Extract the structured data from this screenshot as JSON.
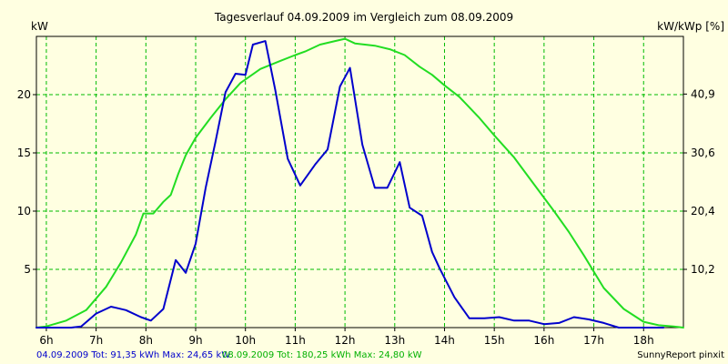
{
  "chart_data": {
    "type": "line",
    "title": "Tagesverlauf 04.09.2009 im Vergleich zum 08.09.2009",
    "ylabel_left": "kW",
    "ylabel_right": "kW/kWp [%]",
    "xlim": [
      5.8,
      18.8
    ],
    "ylim": [
      0,
      25
    ],
    "ylim_right": [
      0,
      51
    ],
    "x_ticks": [
      {
        "value": 6,
        "label": "6h"
      },
      {
        "value": 7,
        "label": "7h"
      },
      {
        "value": 8,
        "label": "8h"
      },
      {
        "value": 9,
        "label": "9h"
      },
      {
        "value": 10,
        "label": "10h"
      },
      {
        "value": 11,
        "label": "11h"
      },
      {
        "value": 12,
        "label": "12h"
      },
      {
        "value": 13,
        "label": "13h"
      },
      {
        "value": 14,
        "label": "14h"
      },
      {
        "value": 15,
        "label": "15h"
      },
      {
        "value": 16,
        "label": "16h"
      },
      {
        "value": 17,
        "label": "17h"
      },
      {
        "value": 18,
        "label": "18h"
      }
    ],
    "y_ticks_left": [
      {
        "value": 5,
        "label": "5"
      },
      {
        "value": 10,
        "label": "10"
      },
      {
        "value": 15,
        "label": "15"
      },
      {
        "value": 20,
        "label": "20"
      }
    ],
    "y_ticks_right": [
      {
        "value": 10.2,
        "label": "10,2"
      },
      {
        "value": 20.4,
        "label": "20,4"
      },
      {
        "value": 30.6,
        "label": "30,6"
      },
      {
        "value": 40.9,
        "label": "40,9"
      }
    ],
    "series": [
      {
        "name": "04.09.2009",
        "color": "#0000cc",
        "x": [
          5.8,
          6.5,
          6.7,
          7.0,
          7.3,
          7.6,
          7.9,
          8.1,
          8.35,
          8.6,
          8.8,
          9.0,
          9.2,
          9.4,
          9.6,
          9.8,
          10.0,
          10.15,
          10.4,
          10.6,
          10.85,
          11.1,
          11.4,
          11.65,
          11.9,
          12.1,
          12.35,
          12.6,
          12.85,
          13.1,
          13.3,
          13.55,
          13.75,
          13.9,
          14.2,
          14.5,
          14.8,
          15.1,
          15.4,
          15.7,
          16.0,
          16.3,
          16.6,
          16.9,
          17.2,
          17.5,
          17.8,
          18.1,
          18.4
        ],
        "y": [
          0,
          0,
          0.1,
          1.2,
          1.8,
          1.5,
          0.9,
          0.6,
          1.6,
          5.8,
          4.7,
          7.2,
          12,
          16,
          20.2,
          21.8,
          21.7,
          24.3,
          24.6,
          20.4,
          14.5,
          12.2,
          14,
          15.3,
          20.7,
          22.3,
          15.7,
          12,
          12,
          14.2,
          10.3,
          9.6,
          6.5,
          5.1,
          2.6,
          0.8,
          0.8,
          0.9,
          0.6,
          0.6,
          0.3,
          0.4,
          0.9,
          0.7,
          0.4,
          0,
          0,
          0,
          0
        ]
      },
      {
        "name": "08.09.2009",
        "color": "#22dd22",
        "x": [
          5.8,
          6.0,
          6.4,
          6.8,
          7.2,
          7.5,
          7.8,
          7.95,
          8.15,
          8.35,
          8.5,
          8.65,
          8.8,
          9.0,
          9.3,
          9.6,
          9.9,
          10.3,
          10.7,
          11.0,
          11.2,
          11.5,
          11.8,
          12.0,
          12.2,
          12.4,
          12.6,
          12.9,
          13.2,
          13.5,
          13.75,
          14.0,
          14.3,
          14.7,
          15.0,
          15.4,
          15.8,
          16.2,
          16.5,
          16.8,
          17.2,
          17.6,
          18.0,
          18.3,
          18.6,
          18.8
        ],
        "y": [
          0,
          0.1,
          0.6,
          1.5,
          3.5,
          5.6,
          8.0,
          9.8,
          9.8,
          10.8,
          11.4,
          13.2,
          14.8,
          16.3,
          18.0,
          19.6,
          21.0,
          22.2,
          22.9,
          23.4,
          23.7,
          24.3,
          24.6,
          24.8,
          24.4,
          24.3,
          24.2,
          23.9,
          23.4,
          22.4,
          21.7,
          20.8,
          19.8,
          18.0,
          16.5,
          14.6,
          12.3,
          10.0,
          8.2,
          6.2,
          3.4,
          1.6,
          0.5,
          0.2,
          0.1,
          0
        ]
      }
    ]
  },
  "footer": {
    "blue_text": "04.09.2009 Tot: 91,35 kWh Max: 24,65 kW",
    "green_text": "08.09.2009 Tot: 180,25 kWh Max: 24,80 kW",
    "brand": "SunnyReport pinxit"
  },
  "colors": {
    "background": "#ffffe1",
    "grid": "#00bb00",
    "blue": "#0000cc",
    "green": "#22dd22"
  }
}
